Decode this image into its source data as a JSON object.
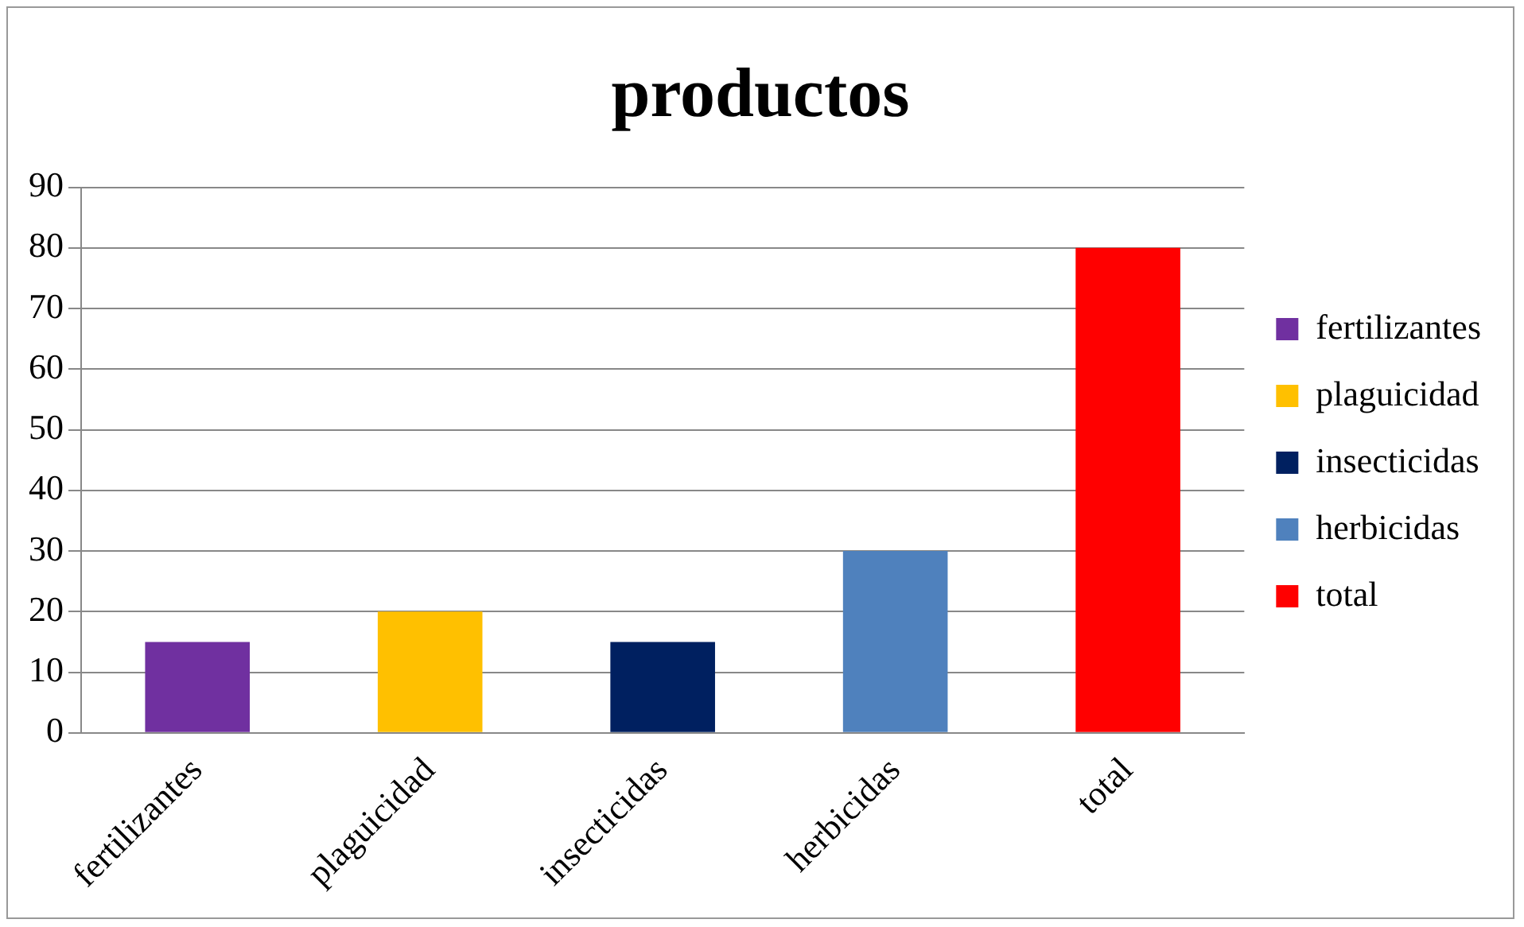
{
  "chart_data": {
    "type": "bar",
    "title": "productos",
    "categories": [
      "fertilizantes",
      "plaguicidad",
      "insecticidas",
      "herbicidas",
      "total"
    ],
    "series": [
      {
        "name": "fertilizantes",
        "color": "#7030a0",
        "values": [
          15,
          null,
          null,
          null,
          null
        ]
      },
      {
        "name": "plaguicidad",
        "color": "#ffc000",
        "values": [
          null,
          20,
          null,
          null,
          null
        ]
      },
      {
        "name": "insecticidas",
        "color": "#002060",
        "values": [
          null,
          null,
          15,
          null,
          null
        ]
      },
      {
        "name": "herbicidas",
        "color": "#4f81bd",
        "values": [
          null,
          null,
          null,
          30,
          null
        ]
      },
      {
        "name": "total",
        "color": "#ff0000",
        "values": [
          null,
          null,
          null,
          null,
          80
        ]
      }
    ],
    "ylim": [
      0,
      90
    ],
    "yticks": [
      0,
      10,
      20,
      30,
      40,
      50,
      60,
      70,
      80,
      90
    ],
    "grid": "y",
    "legend": "right"
  }
}
